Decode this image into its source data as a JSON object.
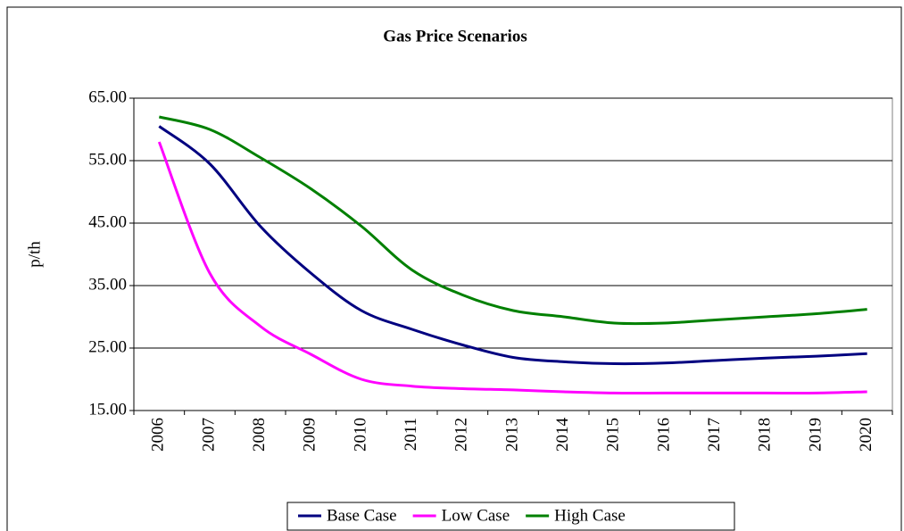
{
  "chart_data": {
    "type": "line",
    "title": "Gas Price Scenarios",
    "y_label": "p/th",
    "categories": [
      "2006",
      "2007",
      "2008",
      "2009",
      "2010",
      "2011",
      "2012",
      "2013",
      "2014",
      "2015",
      "2016",
      "2017",
      "2018",
      "2019",
      "2020"
    ],
    "series": [
      {
        "name": "Base Case",
        "color": "#000080",
        "values": [
          60.5,
          54.5,
          44.5,
          37.0,
          31.0,
          28.0,
          25.5,
          23.5,
          22.8,
          22.5,
          22.6,
          23.0,
          23.4,
          23.7,
          24.1
        ]
      },
      {
        "name": "Low Case",
        "color": "#ff00ff",
        "values": [
          58.0,
          37.0,
          28.5,
          24.0,
          20.0,
          18.9,
          18.5,
          18.3,
          18.0,
          17.8,
          17.8,
          17.8,
          17.8,
          17.8,
          18.0
        ]
      },
      {
        "name": "High Case",
        "color": "#008000",
        "values": [
          62.0,
          60.0,
          55.5,
          50.5,
          44.5,
          37.5,
          33.5,
          31.0,
          30.0,
          29.0,
          29.0,
          29.5,
          30.0,
          30.5,
          31.2
        ]
      }
    ],
    "ylim": [
      15,
      65
    ],
    "yticks": [
      {
        "value": 15,
        "label": "15.00"
      },
      {
        "value": 25,
        "label": "25.00"
      },
      {
        "value": 35,
        "label": "35.00"
      },
      {
        "value": 45,
        "label": "45.00"
      },
      {
        "value": 55,
        "label": "55.00"
      },
      {
        "value": 65,
        "label": "65.00"
      }
    ],
    "grid": true,
    "legend": "bottom"
  }
}
